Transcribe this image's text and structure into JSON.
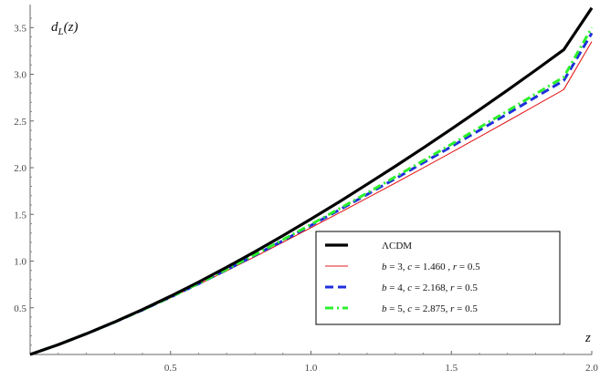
{
  "chart_data": {
    "type": "line",
    "x_axis": {
      "label": "z",
      "range": [
        0,
        2.0
      ],
      "tick_values": [
        0.5,
        1.0,
        1.5,
        2.0
      ],
      "tick_labels": [
        "0.5",
        "1.0",
        "1.5",
        "2.0"
      ]
    },
    "y_axis": {
      "label_base": "d",
      "label_sub": "L",
      "label_tail": "(z)",
      "range": [
        0,
        3.72
      ],
      "tick_values": [
        0.5,
        1.0,
        1.5,
        2.0,
        2.5,
        3.0,
        3.5
      ],
      "tick_labels": [
        "0.5",
        "1.0",
        "1.5",
        "2.0",
        "2.5",
        "3.0",
        "3.5"
      ]
    },
    "grid": false,
    "legend_position": "bottom-right",
    "x": [
      0,
      0.1,
      0.2,
      0.3,
      0.4,
      0.5,
      0.6,
      0.7,
      0.8,
      0.9,
      1.0,
      1.1,
      1.2,
      1.3,
      1.4,
      1.5,
      1.6,
      1.7,
      1.8,
      1.9,
      2.0
    ],
    "series": [
      {
        "name": "ΛCDM",
        "color": "#000000",
        "style": "solid-thick",
        "values": [
          0,
          0.105,
          0.221,
          0.347,
          0.481,
          0.624,
          0.776,
          0.935,
          1.1,
          1.272,
          1.45,
          1.633,
          1.822,
          2.015,
          2.212,
          2.414,
          2.62,
          2.83,
          3.044,
          3.262,
          3.71
        ]
      },
      {
        "name_parts": [
          "b",
          " = 3,  ",
          "c",
          " = 1.460 ,  ",
          "r",
          " = 0.5"
        ],
        "color": "#e31a1c",
        "style": "solid-thin",
        "values": [
          0,
          0.105,
          0.22,
          0.343,
          0.473,
          0.609,
          0.75,
          0.897,
          1.047,
          1.201,
          1.357,
          1.515,
          1.675,
          1.835,
          1.998,
          2.163,
          2.33,
          2.498,
          2.666,
          2.836,
          3.35
        ]
      },
      {
        "name_parts": [
          "b",
          " = 4,  ",
          "c",
          " = 2.168,  ",
          "r",
          " = 0.5"
        ],
        "color": "#1f2fdc",
        "style": "dashed",
        "values": [
          0,
          0.105,
          0.221,
          0.345,
          0.476,
          0.614,
          0.757,
          0.907,
          1.061,
          1.219,
          1.381,
          1.546,
          1.713,
          1.882,
          2.053,
          2.226,
          2.401,
          2.577,
          2.755,
          2.933,
          3.44
        ]
      },
      {
        "name_parts": [
          "b",
          " = 5,  ",
          "c",
          " = 2.875,  ",
          "r",
          " = 0.5"
        ],
        "color": "#2cf02c",
        "style": "dashdot",
        "values": [
          0,
          0.105,
          0.221,
          0.345,
          0.477,
          0.616,
          0.761,
          0.912,
          1.068,
          1.228,
          1.392,
          1.559,
          1.729,
          1.901,
          2.075,
          2.251,
          2.429,
          2.608,
          2.789,
          2.97,
          3.5
        ]
      }
    ]
  }
}
